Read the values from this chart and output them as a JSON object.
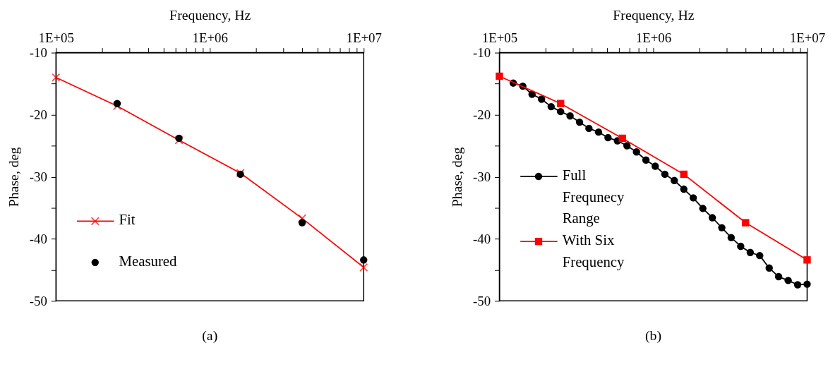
{
  "chart_data": [
    {
      "type": "line",
      "title": "(a)",
      "xlabel": "Frequency, Hz",
      "ylabel": "Phase, deg",
      "log": "x",
      "grid": false,
      "legend": "bottom left",
      "xlim": [
        100000,
        10000000
      ],
      "xticks": [
        {
          "value": 100000,
          "label": "1E+05"
        },
        {
          "value": 200000,
          "label": null
        },
        {
          "value": 300000,
          "label": null
        },
        {
          "value": 400000,
          "label": null
        },
        {
          "value": 500000,
          "label": null
        },
        {
          "value": 600000,
          "label": null
        },
        {
          "value": 700000,
          "label": null
        },
        {
          "value": 800000,
          "label": null
        },
        {
          "value": 900000,
          "label": null
        },
        {
          "value": 1000000,
          "label": "1E+06"
        },
        {
          "value": 2000000,
          "label": null
        },
        {
          "value": 3000000,
          "label": null
        },
        {
          "value": 4000000,
          "label": null
        },
        {
          "value": 5000000,
          "label": null
        },
        {
          "value": 6000000,
          "label": null
        },
        {
          "value": 7000000,
          "label": null
        },
        {
          "value": 8000000,
          "label": null
        },
        {
          "value": 9000000,
          "label": null
        },
        {
          "value": 10000000,
          "label": "1E+07"
        }
      ],
      "ylim": [
        -50,
        -10
      ],
      "yticks": [
        -10,
        {
          "value": -15,
          "label": null
        },
        -20,
        {
          "value": -25,
          "label": null
        },
        -30,
        {
          "value": -35,
          "label": null
        },
        -40,
        {
          "value": -45,
          "label": null
        },
        -50
      ],
      "series": [
        {
          "name": "Fit",
          "type": "line",
          "color": "#ff0000",
          "marker": "cross",
          "x": [
            100000,
            250000,
            630000,
            1580000,
            3980000,
            10000000
          ],
          "values": [
            -14.0,
            -18.6,
            -24.1,
            -29.4,
            -36.7,
            -44.6
          ]
        },
        {
          "name": "Measured",
          "type": "scatter",
          "color": "#000000",
          "marker": "circle",
          "x": [
            250000,
            630000,
            1580000,
            3980000,
            10000000
          ],
          "values": [
            -18.2,
            -23.8,
            -29.6,
            -37.4,
            -43.4
          ]
        }
      ]
    },
    {
      "type": "line",
      "title": "(b)",
      "xlabel": "Frequency, Hz",
      "ylabel": "Phase, deg",
      "log": "x",
      "grid": false,
      "legend": "left",
      "xlim": [
        100000,
        10000000
      ],
      "xticks": [
        {
          "value": 100000,
          "label": "1E+05"
        },
        {
          "value": 200000,
          "label": null
        },
        {
          "value": 300000,
          "label": null
        },
        {
          "value": 400000,
          "label": null
        },
        {
          "value": 500000,
          "label": null
        },
        {
          "value": 600000,
          "label": null
        },
        {
          "value": 700000,
          "label": null
        },
        {
          "value": 800000,
          "label": null
        },
        {
          "value": 900000,
          "label": null
        },
        {
          "value": 1000000,
          "label": "1E+06"
        },
        {
          "value": 2000000,
          "label": null
        },
        {
          "value": 3000000,
          "label": null
        },
        {
          "value": 4000000,
          "label": null
        },
        {
          "value": 5000000,
          "label": null
        },
        {
          "value": 6000000,
          "label": null
        },
        {
          "value": 7000000,
          "label": null
        },
        {
          "value": 8000000,
          "label": null
        },
        {
          "value": 9000000,
          "label": null
        },
        {
          "value": 10000000,
          "label": "1E+07"
        }
      ],
      "ylim": [
        -50,
        -10
      ],
      "yticks": [
        -10,
        {
          "value": -15,
          "label": null
        },
        -20,
        {
          "value": -25,
          "label": null
        },
        -30,
        {
          "value": -35,
          "label": null
        },
        -40,
        {
          "value": -45,
          "label": null
        },
        -50
      ],
      "series": [
        {
          "name": "Full Frequnecy Range",
          "type": "line",
          "color": "#000000",
          "marker": "circle",
          "x": [
            123000,
            142000,
            163000,
            188000,
            217000,
            250000,
            288000,
            332000,
            382000,
            441000,
            508000,
            585000,
            675000,
            778000,
            896000,
            1030000,
            1190000,
            1370000,
            1580000,
            1820000,
            2100000,
            2420000,
            2790000,
            3210000,
            3700000,
            4270000,
            4920000,
            5670000,
            6530000,
            7530000,
            8680000,
            10000000
          ],
          "values": [
            -14.9,
            -15.4,
            -16.7,
            -17.5,
            -18.7,
            -19.5,
            -20.2,
            -21.2,
            -22.2,
            -22.8,
            -23.7,
            -24.2,
            -25.0,
            -26.0,
            -27.3,
            -28.3,
            -29.6,
            -30.6,
            -32.0,
            -33.4,
            -35.1,
            -36.6,
            -38.2,
            -39.8,
            -41.2,
            -42.2,
            -42.7,
            -44.7,
            -46.1,
            -46.7,
            -47.4,
            -47.3
          ]
        },
        {
          "name": "With Six Frequency",
          "type": "line",
          "color": "#ff0000",
          "marker": "square",
          "x": [
            100000,
            250000,
            630000,
            1580000,
            3980000,
            10000000
          ],
          "values": [
            -13.8,
            -18.2,
            -23.8,
            -29.6,
            -37.4,
            -43.4
          ]
        }
      ]
    }
  ]
}
